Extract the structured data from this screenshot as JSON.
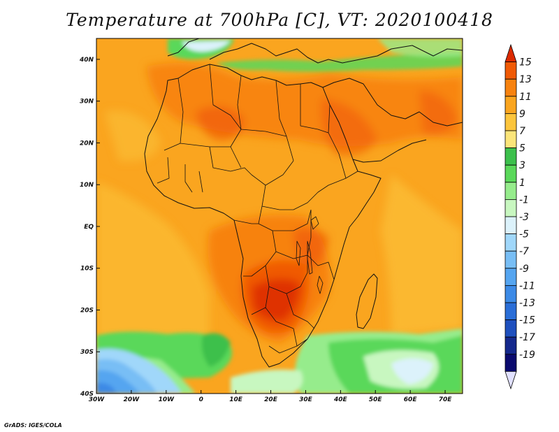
{
  "title": "Temperature at 700hPa [C], VT: 2020100418",
  "credit": "GrADS: IGES/COLA",
  "map": {
    "lon_range": [
      -30,
      75
    ],
    "lat_range": [
      -40,
      45
    ],
    "lon_ticks": [
      {
        "value": -30,
        "label": "30W"
      },
      {
        "value": -20,
        "label": "20W"
      },
      {
        "value": -10,
        "label": "10W"
      },
      {
        "value": 0,
        "label": "0"
      },
      {
        "value": 10,
        "label": "10E"
      },
      {
        "value": 20,
        "label": "20E"
      },
      {
        "value": 30,
        "label": "30E"
      },
      {
        "value": 40,
        "label": "40E"
      },
      {
        "value": 50,
        "label": "50E"
      },
      {
        "value": 60,
        "label": "60E"
      },
      {
        "value": 70,
        "label": "70E"
      }
    ],
    "lat_ticks": [
      {
        "value": 40,
        "label": "40N"
      },
      {
        "value": 30,
        "label": "30N"
      },
      {
        "value": 20,
        "label": "20N"
      },
      {
        "value": 10,
        "label": "10N"
      },
      {
        "value": 0,
        "label": "EQ"
      },
      {
        "value": -10,
        "label": "10S"
      },
      {
        "value": -20,
        "label": "20S"
      },
      {
        "value": -30,
        "label": "30S"
      },
      {
        "value": -40,
        "label": "40S"
      }
    ]
  },
  "colorbar": {
    "levels": [
      "15",
      "13",
      "11",
      "9",
      "7",
      "5",
      "3",
      "1",
      "-1",
      "-3",
      "-5",
      "-7",
      "-9",
      "-11",
      "-13",
      "-15",
      "-17",
      "-19"
    ],
    "colors": [
      "#dc2a00",
      "#f05a05",
      "#f7820f",
      "#faa51f",
      "#fcc53c",
      "#fbe57a",
      "#3cc04c",
      "#5ad85a",
      "#96ec8c",
      "#c8f7c0",
      "#dcf2fb",
      "#a0d7fa",
      "#78bef5",
      "#55a5f0",
      "#3c8ae6",
      "#2a6ed7",
      "#1e50be",
      "#14288c",
      "#0a0a6e",
      "#e1e1ff"
    ]
  }
}
